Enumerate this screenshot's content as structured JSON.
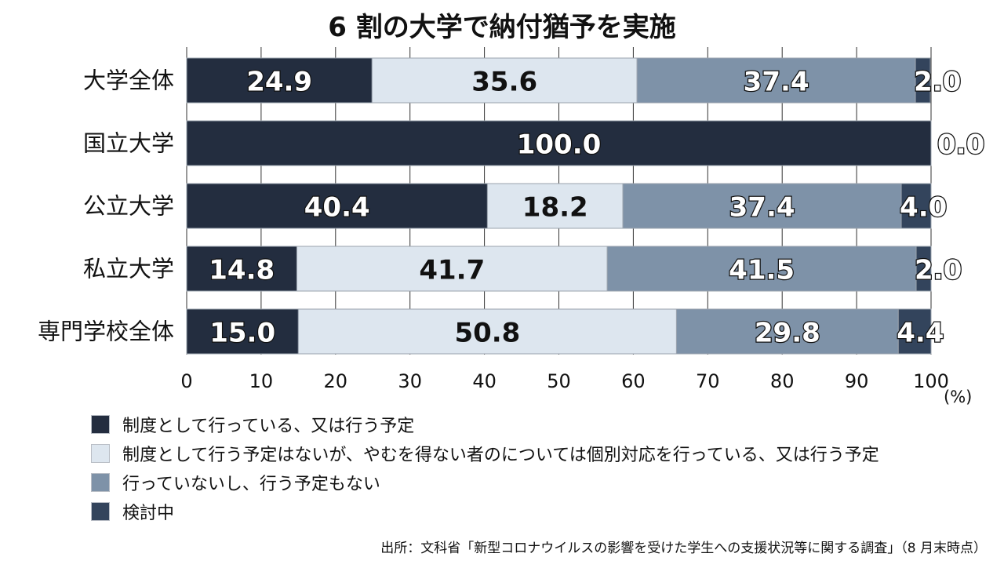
{
  "chart_data": {
    "type": "bar",
    "orientation": "horizontal",
    "stacked": true,
    "title": "6 割の大学で納付猶予を実施",
    "categories": [
      "大学全体",
      "国立大学",
      "公立大学",
      "私立大学",
      "専門学校全体"
    ],
    "series": [
      {
        "name": "制度として行っている、又は行う予定",
        "color": "#232d3f",
        "values": [
          24.9,
          100.0,
          40.4,
          14.8,
          15.0
        ],
        "labels": [
          "24.9",
          "100.0",
          "40.4",
          "14.8",
          "15.0"
        ]
      },
      {
        "name": "制度として行う予定はないが、やむを得ない者のについては個別対応を行っている、又は行う予定",
        "color": "#dde6ef",
        "values": [
          35.6,
          0.0,
          18.2,
          41.7,
          50.8
        ],
        "labels": [
          "35.6",
          "",
          "18.2",
          "41.7",
          "50.8"
        ]
      },
      {
        "name": "行っていないし、行う予定もない",
        "color": "#7e92a8",
        "values": [
          37.4,
          0.0,
          37.4,
          41.5,
          29.8
        ],
        "labels": [
          "37.4",
          "",
          "37.4",
          "41.5",
          "29.8"
        ]
      },
      {
        "name": "検討中",
        "color": "#33445c",
        "values": [
          2.0,
          0.0,
          4.0,
          2.0,
          4.4
        ],
        "labels": [
          "2.0",
          "0.0",
          "4.0",
          "2.0",
          "4.4"
        ]
      }
    ],
    "xlim": [
      0,
      100
    ],
    "xticks": [
      "0",
      "10",
      "20",
      "30",
      "40",
      "50",
      "60",
      "70",
      "80",
      "90",
      "100"
    ],
    "xunit": "(%)",
    "grid": true,
    "legend_position": "bottom-left",
    "source": "出所：文科省「新型コロナウイルスの影響を受けた学生への支援状況等に関する調査」（8 月末時点）"
  }
}
